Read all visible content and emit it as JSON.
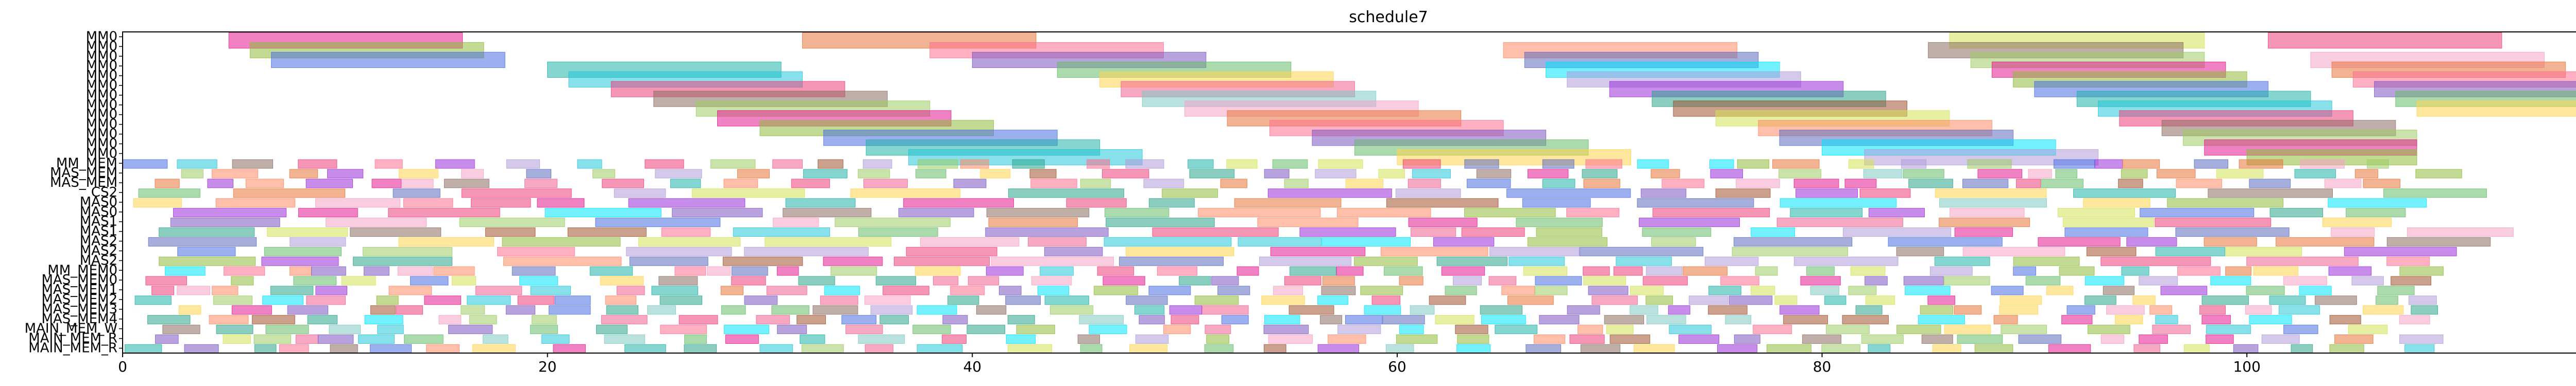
{
  "chart_data": {
    "type": "gantt",
    "title": "schedule7",
    "xlabel": "",
    "ylabel": "",
    "xlim": [
      0,
      118.5
    ],
    "grid": false,
    "legend": "none",
    "x_ticks": [
      0,
      20,
      40,
      60,
      80,
      100
    ],
    "x_tick_labels": [
      "0",
      "20",
      "40",
      "60",
      "80",
      "100"
    ],
    "rows": [
      "MM0",
      "MM0",
      "MM0",
      "MM0",
      "MM0",
      "MM0",
      "MM0",
      "MM0",
      "MM0",
      "MM0",
      "MM0",
      "MM0",
      "MM0",
      "MM_MEM",
      "MAS_MEM",
      "MAS_MEM",
      "CS2",
      "MAS0",
      "MAS0",
      "MAS1",
      "MAS1",
      "MAS2",
      "MAS2",
      "MAS2",
      "MM_MEM0",
      "MAS_MEM0",
      "MAS_MEM1",
      "MAS_MEM2",
      "MAS_MEM3",
      "MAS_MEM4",
      "MAIN_MEM_W",
      "MAIN_MEM_R",
      "MAIN_MEM_R"
    ],
    "palette": [
      "#e31a8f",
      "#9b30d9",
      "#f5a3c7",
      "#8fbc3a",
      "#2ca58d",
      "#e8743b",
      "#4a6fe3",
      "#a0522d",
      "#ff6f91",
      "#20b2aa",
      "#d4e157",
      "#7e57c2",
      "#26c6da",
      "#ff8a65",
      "#66bb6a",
      "#ec407a",
      "#5c6bc0",
      "#ffd54f",
      "#8d6e63",
      "#00e5ff",
      "#f06292",
      "#9ccc65",
      "#b39ddb",
      "#80cbc4"
    ],
    "bars": {
      "MM0": [
        [
          5,
          16
        ],
        [
          32,
          43
        ],
        [
          86,
          98
        ],
        [
          101,
          112
        ]
      ],
      "MM0_2": [
        [
          6,
          17
        ],
        [
          38,
          49
        ],
        [
          65,
          76
        ],
        [
          85,
          97
        ]
      ],
      "MM0_3": [
        [
          7,
          18
        ],
        [
          40,
          51
        ],
        [
          66,
          77
        ],
        [
          87,
          98
        ],
        [
          103,
          114
        ]
      ],
      "MM0_4": [
        [
          20,
          31
        ],
        [
          44,
          55
        ],
        [
          67,
          78
        ],
        [
          88,
          99
        ],
        [
          104,
          115
        ]
      ],
      "MM0_5": [
        [
          21,
          32
        ],
        [
          46,
          57
        ],
        [
          68,
          79
        ],
        [
          89,
          100
        ],
        [
          105,
          116
        ]
      ],
      "MM0_6": [
        [
          23,
          34
        ],
        [
          47,
          58
        ],
        [
          70,
          81
        ],
        [
          90,
          101
        ],
        [
          106,
          117
        ]
      ],
      "MM0_7": [
        [
          25,
          36
        ],
        [
          48,
          59
        ],
        [
          72,
          83
        ],
        [
          92,
          103
        ],
        [
          107,
          118
        ]
      ],
      "MM0_8": [
        [
          27,
          38
        ],
        [
          50,
          61
        ],
        [
          73,
          84
        ],
        [
          93,
          104
        ],
        [
          108,
          118
        ]
      ],
      "MM0_9": [
        [
          28,
          39
        ],
        [
          52,
          63
        ],
        [
          75,
          86
        ],
        [
          94,
          105
        ]
      ],
      "MM0_10": [
        [
          30,
          41
        ],
        [
          54,
          65
        ],
        [
          77,
          88
        ],
        [
          96,
          107
        ]
      ],
      "MM0_11": [
        [
          33,
          44
        ],
        [
          56,
          67
        ],
        [
          78,
          89
        ],
        [
          97,
          108
        ]
      ],
      "MM0_12": [
        [
          35,
          46
        ],
        [
          58,
          69
        ],
        [
          80,
          91
        ],
        [
          98,
          108
        ]
      ],
      "MM0_13": [
        [
          37,
          48
        ],
        [
          60,
          71
        ],
        [
          82,
          93
        ],
        [
          100,
          108
        ]
      ]
    }
  }
}
